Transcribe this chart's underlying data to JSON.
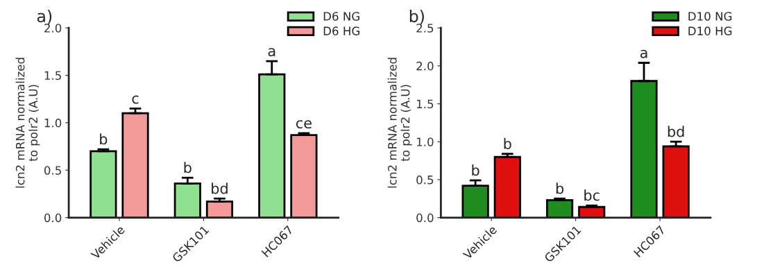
{
  "chart_data": [
    {
      "type": "bar",
      "title": "a)",
      "ylabel": "lcn2 mRNA normalized\nto polr2 (A.U)",
      "categories": [
        "Vehicle",
        "GSK101",
        "HC067"
      ],
      "ylim": [
        0,
        2.0
      ],
      "yticks": [
        {
          "value": 0,
          "label": "0.0"
        },
        0.5,
        {
          "value": 1,
          "label": "1.0"
        },
        1.5,
        {
          "value": 2,
          "label": "2.0"
        }
      ],
      "legend": "top right",
      "grid": false,
      "series": [
        {
          "name": "D6 NG",
          "color": "#8fe08f",
          "values": [
            0.7,
            0.36,
            1.51
          ],
          "errors": [
            0.02,
            0.06,
            0.14
          ]
        },
        {
          "name": "D6 HG",
          "color": "#f29a9a",
          "values": [
            1.1,
            0.17,
            0.87
          ],
          "errors": [
            0.05,
            0.03,
            0.02
          ]
        }
      ],
      "annotations": [
        "b",
        "c",
        "b",
        "bd",
        "a",
        "ce"
      ]
    },
    {
      "type": "bar",
      "title": "b)",
      "ylabel": "lcn2 mRNA normalized\nto polr2 (A.U)",
      "categories": [
        "Vehicle",
        "GSK101",
        "HC067"
      ],
      "ylim": [
        0,
        2.5
      ],
      "yticks": [
        {
          "value": 0,
          "label": "0.0"
        },
        0.5,
        {
          "value": 1,
          "label": "1.0"
        },
        1.5,
        {
          "value": 2,
          "label": "2.0"
        },
        2.5
      ],
      "legend": "top right",
      "grid": false,
      "series": [
        {
          "name": "D10 NG",
          "color": "#1e8c1e",
          "values": [
            0.42,
            0.23,
            1.8
          ],
          "errors": [
            0.07,
            0.02,
            0.24
          ]
        },
        {
          "name": "D10 HG",
          "color": "#e01010",
          "values": [
            0.8,
            0.14,
            0.94
          ],
          "errors": [
            0.04,
            0.02,
            0.06
          ]
        }
      ],
      "annotations": [
        "b",
        "b",
        "b",
        "bc",
        "a",
        "bd"
      ]
    }
  ]
}
